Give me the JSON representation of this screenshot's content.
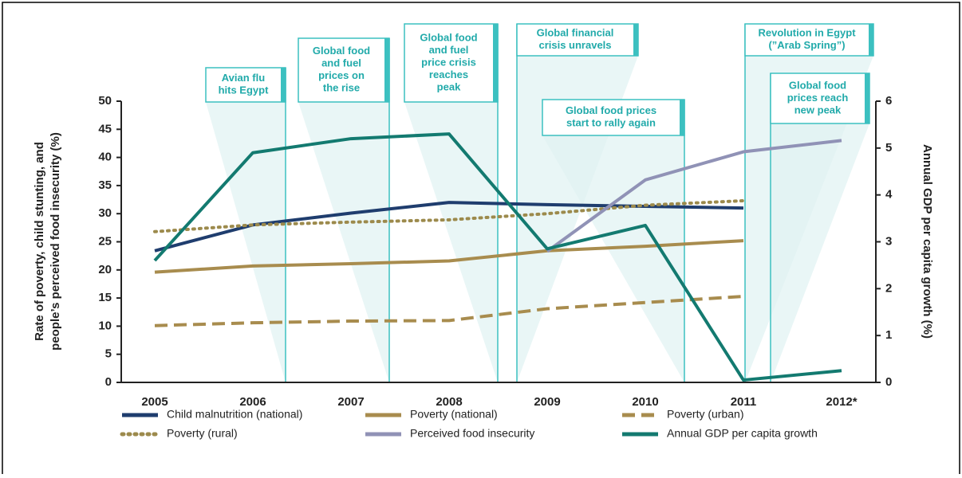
{
  "chart_data": {
    "type": "line",
    "categories": [
      "2005",
      "2006",
      "2007",
      "2008",
      "2009",
      "2010",
      "2011",
      "2012*"
    ],
    "ylabel": [
      "Rate of poverty, child stunting, and",
      "people’s perceived food insecurity (%)"
    ],
    "y2label": "Annual GDP per capita growth (%)",
    "ylim": [
      0,
      50
    ],
    "yticks": [
      0,
      5,
      10,
      15,
      20,
      25,
      30,
      35,
      40,
      45,
      50
    ],
    "y2lim": [
      0,
      6
    ],
    "y2ticks": [
      0,
      1,
      2,
      3,
      4,
      5,
      6
    ],
    "series": [
      {
        "name": "Child malnutrition (national)",
        "color": "#1f3d6e",
        "style": "solid",
        "values": [
          23.4,
          28,
          30.1,
          32,
          31.6,
          31.3,
          31,
          null
        ]
      },
      {
        "name": "Poverty (national)",
        "color": "#a88c4e",
        "style": "solid",
        "values": [
          19.6,
          20.7,
          21.1,
          21.6,
          23.4,
          24.2,
          25.2,
          null
        ]
      },
      {
        "name": "Poverty (urban)",
        "color": "#a88c4e",
        "style": "dashed",
        "values": [
          10.1,
          10.6,
          10.9,
          11.0,
          13.1,
          14.2,
          15.3,
          null
        ]
      },
      {
        "name": "Poverty (rural)",
        "color": "#9c8a4c",
        "style": "dotted",
        "values": [
          26.8,
          28.0,
          28.5,
          28.9,
          30.0,
          31.5,
          32.3,
          null
        ]
      },
      {
        "name": "Perceived food insecurity",
        "color": "#9092b6",
        "style": "solid",
        "values": [
          null,
          null,
          null,
          null,
          23.3,
          36,
          41,
          43
        ]
      },
      {
        "name": "Annual GDP per capita growth",
        "color": "#137a70",
        "style": "solid",
        "axis": "y2",
        "values": [
          2.6,
          4.9,
          5.2,
          5.3,
          2.85,
          3.35,
          0.05,
          0.25
        ]
      }
    ],
    "annotations": [
      {
        "lines": [
          "Avian flu",
          "hits Egypt"
        ]
      },
      {
        "lines": [
          "Global food",
          "and fuel",
          "prices on",
          "the rise"
        ]
      },
      {
        "lines": [
          "Global food",
          "and fuel",
          "price crisis",
          "reaches",
          "peak"
        ]
      },
      {
        "lines": [
          "Global financial",
          "crisis unravels"
        ]
      },
      {
        "lines": [
          "Global food prices",
          "start  to rally again"
        ]
      },
      {
        "lines": [
          "Revolution in Egypt",
          "(”Arab Spring”)"
        ]
      },
      {
        "lines": [
          "Global food",
          "prices reach",
          "new peak"
        ]
      }
    ]
  }
}
